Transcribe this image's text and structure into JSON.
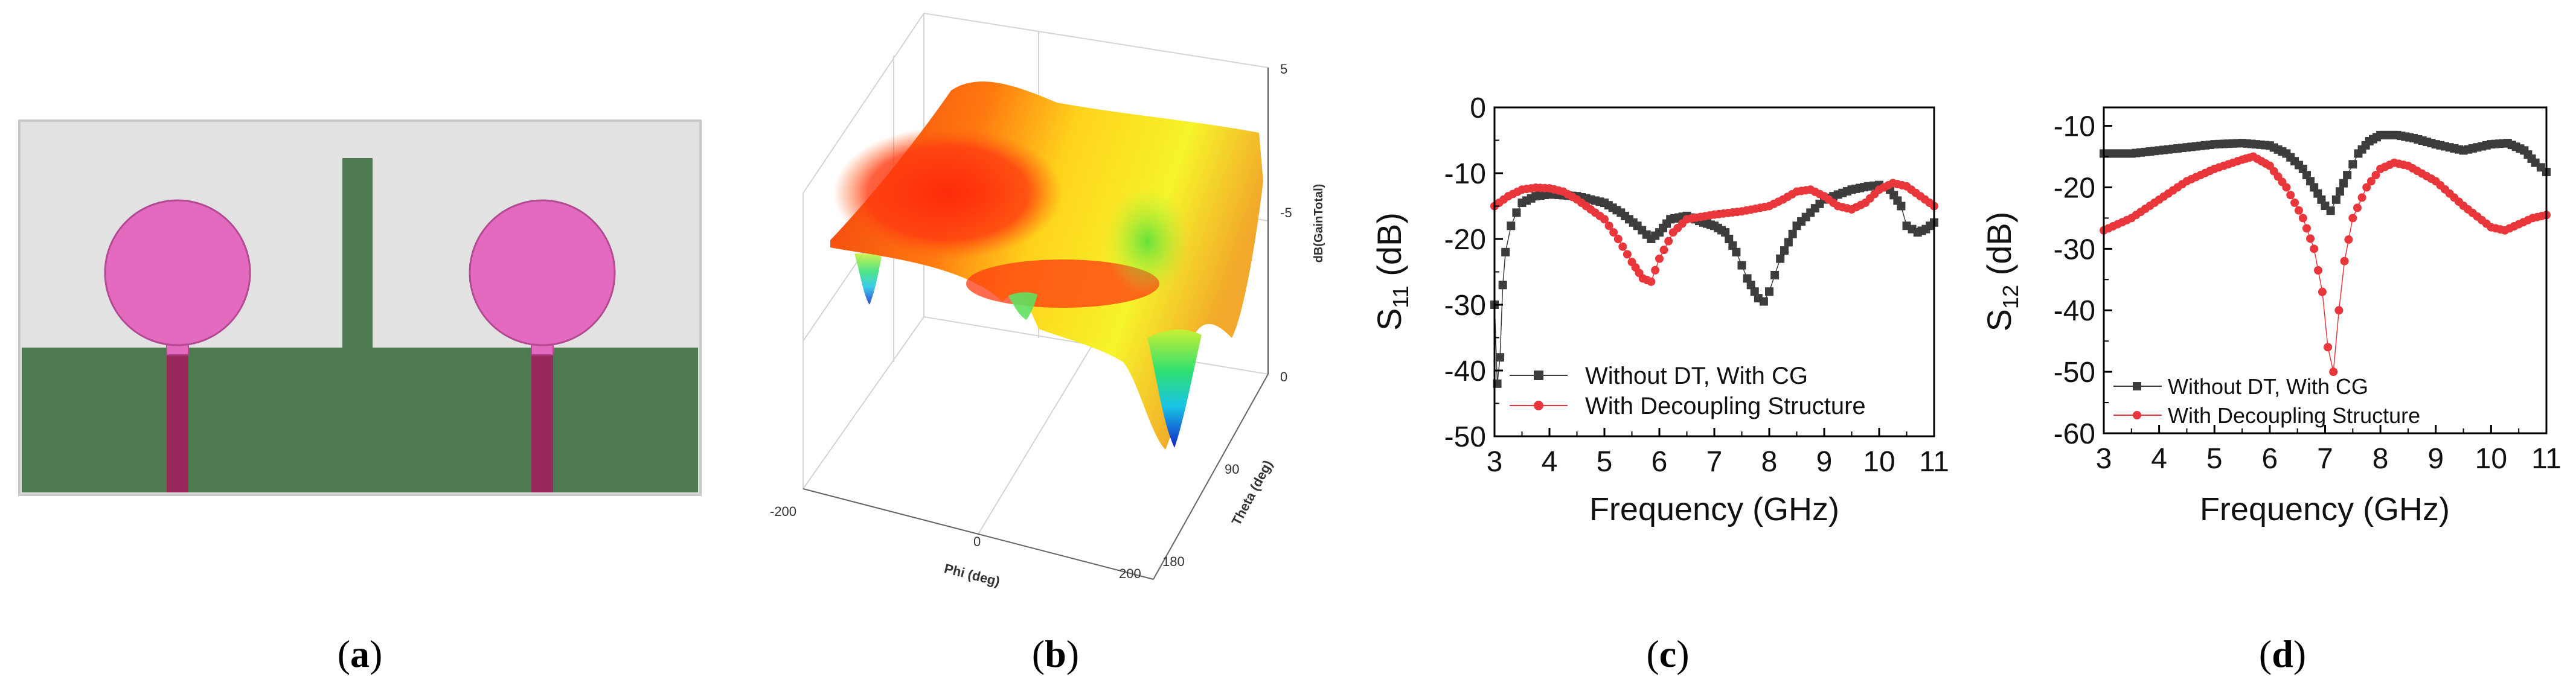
{
  "panels": {
    "a": {
      "caption_open": "(",
      "caption_letter": "a",
      "caption_close": ")"
    },
    "b": {
      "caption_open": "(",
      "caption_letter": "b",
      "caption_close": ")"
    },
    "c": {
      "caption_open": "(",
      "caption_letter": "c",
      "caption_close": ")"
    },
    "d": {
      "caption_open": "(",
      "caption_letter": "d",
      "caption_close": ")"
    }
  },
  "colors": {
    "substrate": "#e2e2e2",
    "ground": "#4e7a52",
    "patch": "#e46ac0",
    "feed": "#98295a",
    "series_without": "#3d3d3d",
    "series_with": "#e8363a"
  },
  "chart_data": [
    {
      "id": "b",
      "type": "surface3d",
      "xlabel": "Phi (deg)",
      "ylabel": "Theta (deg)",
      "zlabel": "dB(GainTotal)",
      "x_ticks": [
        "-200",
        "0",
        "200"
      ],
      "y_ticks": [
        "90",
        "180"
      ],
      "z_ticks": [
        "5",
        "-5",
        "0"
      ]
    },
    {
      "id": "c",
      "type": "line",
      "xlabel": "Frequency (GHz)",
      "ylabel_main": "S",
      "ylabel_sub": "11",
      "ylabel_unit": " (dB)",
      "xlim": [
        3,
        11
      ],
      "ylim": [
        -50,
        0
      ],
      "x_ticks": [
        "3",
        "4",
        "5",
        "6",
        "7",
        "8",
        "9",
        "10",
        "11"
      ],
      "y_ticks": [
        "0",
        "-10",
        "-20",
        "-30",
        "-40",
        "-50"
      ],
      "series": [
        {
          "name": "Without DT, With CG",
          "marker": "square",
          "x": [
            3.0,
            3.05,
            3.1,
            3.15,
            3.2,
            3.3,
            3.4,
            3.5,
            3.75,
            4.0,
            4.5,
            5.0,
            5.3,
            5.6,
            5.85,
            6.0,
            6.2,
            6.5,
            6.8,
            7.0,
            7.2,
            7.4,
            7.6,
            7.8,
            7.9,
            8.0,
            8.2,
            8.5,
            9.0,
            9.5,
            9.8,
            10.0,
            10.2,
            10.4,
            10.5,
            10.7,
            10.85,
            11.0
          ],
          "values": [
            -30,
            -42,
            -38,
            -27,
            -22,
            -18,
            -16,
            -14.5,
            -13.5,
            -13.2,
            -13.5,
            -14.5,
            -16,
            -18,
            -20,
            -19,
            -17,
            -16.5,
            -17.5,
            -18,
            -19,
            -22,
            -26,
            -29,
            -29.5,
            -28,
            -23,
            -18,
            -14,
            -12.5,
            -12,
            -11.8,
            -12.5,
            -15,
            -18,
            -19,
            -18.5,
            -17.5
          ]
        },
        {
          "name": "With Decoupling Structure",
          "marker": "circle",
          "x": [
            3.0,
            3.25,
            3.5,
            3.75,
            4.0,
            4.25,
            4.5,
            5.0,
            5.25,
            5.5,
            5.7,
            5.85,
            6.0,
            6.25,
            6.5,
            7.0,
            7.5,
            8.0,
            8.25,
            8.5,
            8.75,
            9.0,
            9.25,
            9.5,
            9.75,
            10.0,
            10.25,
            10.5,
            10.75,
            11.0
          ],
          "values": [
            -15,
            -13.5,
            -12.5,
            -12.2,
            -12.3,
            -12.8,
            -14,
            -17,
            -20,
            -23.5,
            -26,
            -26.5,
            -23,
            -19,
            -17,
            -16.3,
            -15.8,
            -15,
            -14,
            -12.8,
            -12.5,
            -13.5,
            -15,
            -15.5,
            -14.5,
            -12.5,
            -11.5,
            -12,
            -13.5,
            -15
          ]
        }
      ]
    },
    {
      "id": "d",
      "type": "line",
      "xlabel": "Frequency (GHz)",
      "ylabel_main": "S",
      "ylabel_sub": "12",
      "ylabel_unit": " (dB)",
      "xlim": [
        3,
        11
      ],
      "ylim": [
        -60,
        -7
      ],
      "x_ticks": [
        "3",
        "4",
        "5",
        "6",
        "7",
        "8",
        "9",
        "10",
        "11"
      ],
      "y_ticks": [
        "-10",
        "-20",
        "-30",
        "-40",
        "-50",
        "-60"
      ],
      "series": [
        {
          "name": "Without DT, With CG",
          "marker": "square",
          "x": [
            3.0,
            3.5,
            4.0,
            4.5,
            5.0,
            5.5,
            6.0,
            6.3,
            6.6,
            6.8,
            7.0,
            7.1,
            7.2,
            7.4,
            7.6,
            7.8,
            8.0,
            8.3,
            8.6,
            9.0,
            9.5,
            10.0,
            10.3,
            10.6,
            10.8,
            11.0
          ],
          "values": [
            -14.5,
            -14.5,
            -14,
            -13.5,
            -13,
            -12.8,
            -13.2,
            -14.5,
            -17,
            -20,
            -23,
            -23.8,
            -22,
            -18,
            -14.5,
            -12.5,
            -11.5,
            -11.5,
            -12,
            -13,
            -14,
            -13,
            -12.8,
            -14,
            -16,
            -17.5
          ]
        },
        {
          "name": "With Decoupling Structure",
          "marker": "circle",
          "x": [
            3.0,
            3.5,
            4.0,
            4.5,
            5.0,
            5.5,
            5.7,
            6.0,
            6.3,
            6.6,
            6.8,
            6.95,
            7.05,
            7.15,
            7.25,
            7.35,
            7.5,
            7.75,
            8.0,
            8.25,
            8.5,
            9.0,
            9.5,
            10.0,
            10.25,
            10.5,
            10.75,
            11.0
          ],
          "values": [
            -27,
            -25,
            -22,
            -19,
            -17,
            -15.5,
            -15,
            -16.5,
            -20,
            -25,
            -30,
            -37,
            -46,
            -50,
            -40,
            -32,
            -25,
            -20,
            -17,
            -16,
            -16.5,
            -19,
            -23,
            -26.5,
            -27,
            -26,
            -25,
            -24.5
          ]
        }
      ]
    }
  ]
}
